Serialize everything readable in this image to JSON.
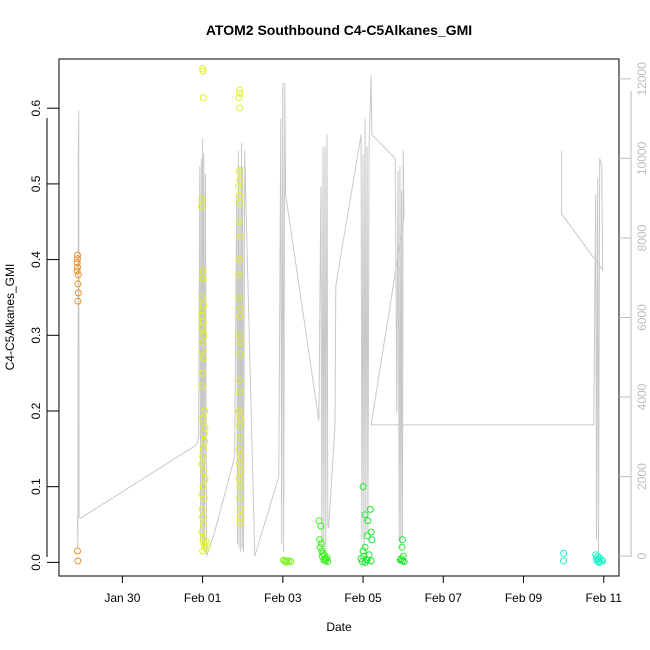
{
  "chart_data": {
    "type": "scatter",
    "title": "ATOM2 Southbound C4-C5Alkanes_GMI",
    "xlabel": "Date",
    "ylabel": "C4-C5Alkanes_GMI",
    "xlim": [
      28.42,
      42.38
    ],
    "ylim": [
      -0.018,
      0.665
    ],
    "y2lim": [
      -500,
      12500
    ],
    "x_ticks": [
      {
        "v": 30,
        "label": "Jan 30"
      },
      {
        "v": 32,
        "label": "Feb 01"
      },
      {
        "v": 34,
        "label": "Feb 03"
      },
      {
        "v": 36,
        "label": "Feb 05"
      },
      {
        "v": 38,
        "label": "Feb 07"
      },
      {
        "v": 40,
        "label": "Feb 09"
      },
      {
        "v": 42,
        "label": "Feb 11"
      }
    ],
    "y_ticks": [
      {
        "v": 0.0,
        "label": "0.0"
      },
      {
        "v": 0.1,
        "label": "0.1"
      },
      {
        "v": 0.2,
        "label": "0.2"
      },
      {
        "v": 0.3,
        "label": "0.3"
      },
      {
        "v": 0.4,
        "label": "0.4"
      },
      {
        "v": 0.5,
        "label": "0.5"
      },
      {
        "v": 0.6,
        "label": "0.6"
      }
    ],
    "y2_ticks": [
      {
        "v": 0,
        "label": "0"
      },
      {
        "v": 2000,
        "label": "2000"
      },
      {
        "v": 4000,
        "label": "4000"
      },
      {
        "v": 6000,
        "label": "6000"
      },
      {
        "v": 8000,
        "label": "8000"
      },
      {
        "v": 10000,
        "label": "10000"
      },
      {
        "v": 12000,
        "label": "12000"
      }
    ],
    "altitude_color": "#c8c8c8",
    "altitude_path": [
      [
        28.88,
        1000
      ],
      [
        28.89,
        200
      ],
      [
        28.9,
        10000
      ],
      [
        28.91,
        11200
      ],
      [
        28.92,
        1000
      ],
      [
        28.95,
        950
      ],
      [
        31.85,
        2800
      ],
      [
        31.9,
        3000
      ],
      [
        31.93,
        9800
      ],
      [
        31.95,
        400
      ],
      [
        31.97,
        10000
      ],
      [
        31.99,
        300
      ],
      [
        32.0,
        10500
      ],
      [
        32.02,
        200
      ],
      [
        32.03,
        10100
      ],
      [
        32.05,
        100
      ],
      [
        32.07,
        9600
      ],
      [
        32.1,
        0
      ],
      [
        32.3,
        600
      ],
      [
        32.8,
        2500
      ],
      [
        32.85,
        9100
      ],
      [
        32.87,
        300
      ],
      [
        32.89,
        10200
      ],
      [
        32.91,
        200
      ],
      [
        32.93,
        9800
      ],
      [
        32.95,
        100
      ],
      [
        32.97,
        10400
      ],
      [
        32.99,
        200
      ],
      [
        33.0,
        9800
      ],
      [
        33.02,
        100
      ],
      [
        33.05,
        10200
      ],
      [
        33.07,
        9300
      ],
      [
        33.3,
        0
      ],
      [
        33.9,
        2000
      ],
      [
        33.95,
        11000
      ],
      [
        33.97,
        300
      ],
      [
        34.0,
        11900
      ],
      [
        34.02,
        100
      ],
      [
        34.05,
        11900
      ],
      [
        34.07,
        9100
      ],
      [
        34.9,
        3400
      ],
      [
        34.95,
        9300
      ],
      [
        34.97,
        300
      ],
      [
        35.0,
        10300
      ],
      [
        35.02,
        200
      ],
      [
        35.05,
        10300
      ],
      [
        35.07,
        100
      ],
      [
        35.1,
        10600
      ],
      [
        35.12,
        800
      ],
      [
        35.14,
        700
      ],
      [
        35.3,
        3300
      ],
      [
        35.32,
        6800
      ],
      [
        35.95,
        10600
      ],
      [
        35.97,
        400
      ],
      [
        36.0,
        10100
      ],
      [
        36.02,
        200
      ],
      [
        36.05,
        11000
      ],
      [
        36.07,
        500
      ],
      [
        36.1,
        10300
      ],
      [
        36.12,
        600
      ],
      [
        36.15,
        10300
      ],
      [
        36.2,
        12100
      ],
      [
        36.22,
        10600
      ],
      [
        36.8,
        10000
      ],
      [
        36.84,
        3600
      ],
      [
        36.87,
        9700
      ],
      [
        36.9,
        400
      ],
      [
        36.92,
        9800
      ],
      [
        36.94,
        200
      ],
      [
        36.96,
        9200
      ],
      [
        36.98,
        400
      ],
      [
        37.0,
        10200
      ],
      [
        37.02,
        8500
      ],
      [
        36.2,
        3300
      ],
      [
        41.75,
        3300
      ],
      [
        41.8,
        9100
      ],
      [
        41.82,
        400
      ],
      [
        41.85,
        9500
      ],
      [
        41.87,
        100
      ],
      [
        41.9,
        10000
      ],
      [
        41.95,
        9800
      ],
      [
        41.97,
        7200
      ],
      [
        40.95,
        8600
      ],
      [
        40.95,
        10200
      ]
    ],
    "series": [
      {
        "color": "#e8922a",
        "points": [
          [
            28.88,
            0.406
          ],
          [
            28.88,
            0.401
          ],
          [
            28.87,
            0.396
          ],
          [
            28.88,
            0.39
          ],
          [
            28.87,
            0.385
          ],
          [
            28.9,
            0.38
          ],
          [
            28.89,
            0.368
          ],
          [
            28.9,
            0.356
          ],
          [
            28.89,
            0.345
          ],
          [
            28.88,
            0.015
          ],
          [
            28.89,
            0.002
          ]
        ]
      },
      {
        "color": "#e2f21e",
        "points": [
          [
            32.0,
            0.652
          ],
          [
            32.01,
            0.649
          ],
          [
            32.02,
            0.614
          ],
          [
            31.98,
            0.48
          ],
          [
            31.97,
            0.47
          ],
          [
            32.01,
            0.385
          ],
          [
            32.0,
            0.375
          ],
          [
            31.99,
            0.35
          ],
          [
            32.02,
            0.34
          ],
          [
            32.0,
            0.333
          ],
          [
            31.98,
            0.326
          ],
          [
            32.01,
            0.318
          ],
          [
            31.99,
            0.31
          ],
          [
            32.03,
            0.3
          ],
          [
            32.0,
            0.29
          ],
          [
            31.98,
            0.28
          ],
          [
            32.02,
            0.27
          ],
          [
            32.0,
            0.25
          ],
          [
            31.99,
            0.233
          ],
          [
            32.05,
            0.2
          ],
          [
            32.0,
            0.19
          ],
          [
            32.06,
            0.178
          ],
          [
            32.04,
            0.17
          ],
          [
            32.05,
            0.16
          ],
          [
            32.02,
            0.15
          ],
          [
            32.0,
            0.14
          ],
          [
            31.98,
            0.13
          ],
          [
            32.03,
            0.12
          ],
          [
            32.06,
            0.11
          ],
          [
            32.01,
            0.1
          ],
          [
            31.98,
            0.09
          ],
          [
            32.04,
            0.085
          ],
          [
            31.99,
            0.07
          ],
          [
            32.0,
            0.06
          ],
          [
            32.02,
            0.05
          ],
          [
            31.98,
            0.04
          ],
          [
            32.01,
            0.03
          ],
          [
            32.03,
            0.025
          ],
          [
            32.05,
            0.02
          ],
          [
            32.0,
            0.015
          ],
          [
            32.09,
            0.028
          ],
          [
            32.1,
            0.02
          ],
          [
            32.92,
            0.624
          ],
          [
            32.93,
            0.62
          ],
          [
            32.91,
            0.614
          ],
          [
            32.92,
            0.6
          ],
          [
            32.91,
            0.517
          ],
          [
            32.93,
            0.505
          ],
          [
            32.9,
            0.497
          ],
          [
            32.92,
            0.485
          ],
          [
            32.94,
            0.475
          ],
          [
            32.91,
            0.45
          ],
          [
            32.93,
            0.43
          ],
          [
            32.92,
            0.4
          ],
          [
            32.9,
            0.38
          ],
          [
            32.91,
            0.35
          ],
          [
            32.94,
            0.335
          ],
          [
            32.93,
            0.325
          ],
          [
            32.92,
            0.3
          ],
          [
            32.95,
            0.29
          ],
          [
            32.94,
            0.275
          ],
          [
            32.92,
            0.24
          ],
          [
            32.93,
            0.225
          ],
          [
            32.91,
            0.2
          ],
          [
            32.94,
            0.19
          ],
          [
            32.92,
            0.18
          ],
          [
            32.93,
            0.165
          ],
          [
            32.91,
            0.15
          ],
          [
            32.94,
            0.14
          ],
          [
            32.92,
            0.13
          ],
          [
            32.95,
            0.12
          ],
          [
            32.91,
            0.11
          ],
          [
            32.93,
            0.1
          ],
          [
            32.92,
            0.085
          ],
          [
            32.95,
            0.07
          ],
          [
            32.94,
            0.06
          ],
          [
            32.93,
            0.052
          ]
        ]
      },
      {
        "color": "#7df21e",
        "points": [
          [
            34.05,
            0.002
          ],
          [
            34.1,
            0.002
          ],
          [
            34.15,
            0.002
          ],
          [
            34.02,
            0.003
          ],
          [
            34.2,
            0.001
          ],
          [
            34.08,
            0.0
          ]
        ]
      },
      {
        "color": "#3cf21e",
        "points": [
          [
            34.9,
            0.055
          ],
          [
            34.95,
            0.048
          ],
          [
            34.92,
            0.03
          ],
          [
            34.96,
            0.025
          ],
          [
            34.93,
            0.02
          ],
          [
            34.97,
            0.015
          ],
          [
            35.0,
            0.012
          ],
          [
            35.03,
            0.01
          ],
          [
            34.98,
            0.008
          ],
          [
            35.05,
            0.005
          ],
          [
            35.08,
            0.004
          ],
          [
            35.1,
            0.006
          ],
          [
            35.02,
            0.003
          ],
          [
            35.06,
            0.002
          ],
          [
            35.12,
            0.001
          ]
        ]
      },
      {
        "color": "#1ee830",
        "points": [
          [
            36.0,
            0.1
          ],
          [
            36.05,
            0.063
          ],
          [
            36.18,
            0.07
          ],
          [
            36.12,
            0.055
          ],
          [
            36.2,
            0.04
          ],
          [
            36.1,
            0.035
          ],
          [
            36.22,
            0.03
          ],
          [
            36.05,
            0.02
          ],
          [
            36.0,
            0.015
          ],
          [
            36.15,
            0.01
          ],
          [
            36.02,
            0.008
          ],
          [
            35.95,
            0.005
          ],
          [
            36.08,
            0.004
          ],
          [
            36.1,
            0.003
          ],
          [
            36.2,
            0.002
          ],
          [
            35.98,
            0.001
          ],
          [
            36.05,
            0.0
          ],
          [
            36.98,
            0.03
          ],
          [
            36.97,
            0.02
          ],
          [
            37.0,
            0.008
          ],
          [
            36.95,
            0.005
          ],
          [
            36.93,
            0.003
          ],
          [
            36.98,
            0.002
          ],
          [
            37.02,
            0.001
          ]
        ]
      },
      {
        "color": "#1ef2c8",
        "points": [
          [
            41.0,
            0.012
          ],
          [
            41.0,
            0.002
          ],
          [
            41.8,
            0.01
          ],
          [
            41.85,
            0.008
          ],
          [
            41.9,
            0.006
          ],
          [
            41.82,
            0.005
          ],
          [
            41.87,
            0.004
          ],
          [
            41.95,
            0.003
          ],
          [
            41.83,
            0.002
          ],
          [
            41.9,
            0.001
          ],
          [
            41.97,
            0.002
          ],
          [
            41.88,
            0.0
          ]
        ]
      }
    ]
  }
}
